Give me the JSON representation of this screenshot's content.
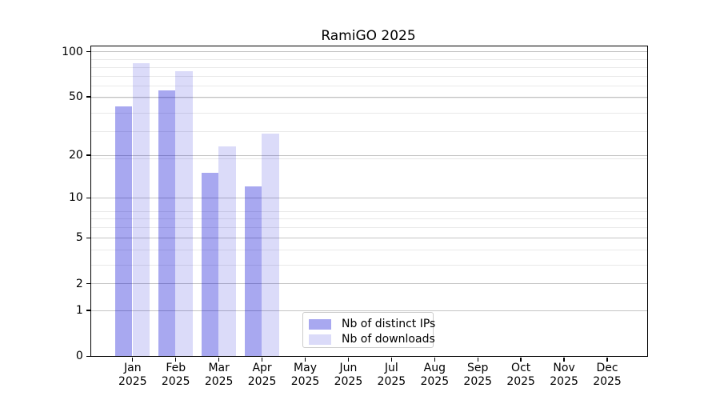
{
  "chart_data": {
    "type": "bar",
    "title": "RamiGO 2025",
    "xlabel": "",
    "ylabel": "",
    "categories": [
      "Jan",
      "Feb",
      "Mar",
      "Apr",
      "May",
      "Jun",
      "Jul",
      "Aug",
      "Sep",
      "Oct",
      "Nov",
      "Dec"
    ],
    "year_label": "2025",
    "series": [
      {
        "name": "Nb of distinct IPs",
        "color": "rgba(0,0,210,0.34)",
        "color_hex": "#a8a8f0",
        "values": [
          43,
          55,
          15,
          12,
          0,
          0,
          0,
          0,
          0,
          0,
          0,
          0
        ]
      },
      {
        "name": "Nb of downloads",
        "color": "rgba(0,0,210,0.14)",
        "color_hex": "#dcdcf9",
        "values": [
          84,
          74,
          23,
          28,
          0,
          0,
          0,
          0,
          0,
          0,
          0,
          0
        ]
      }
    ],
    "yscale": "log1p",
    "yticks": [
      0,
      1,
      2,
      5,
      10,
      20,
      50,
      100
    ],
    "ylim": [
      0,
      108
    ],
    "grid": true,
    "legend_position": "lower center"
  },
  "colors": {
    "bar_ips": "#a8a8f0",
    "bar_downloads": "#dcdcf9",
    "grid_major": "#c3c3c3",
    "grid_minor": "#e9e9e9",
    "axis": "#000000",
    "background": "#ffffff"
  }
}
